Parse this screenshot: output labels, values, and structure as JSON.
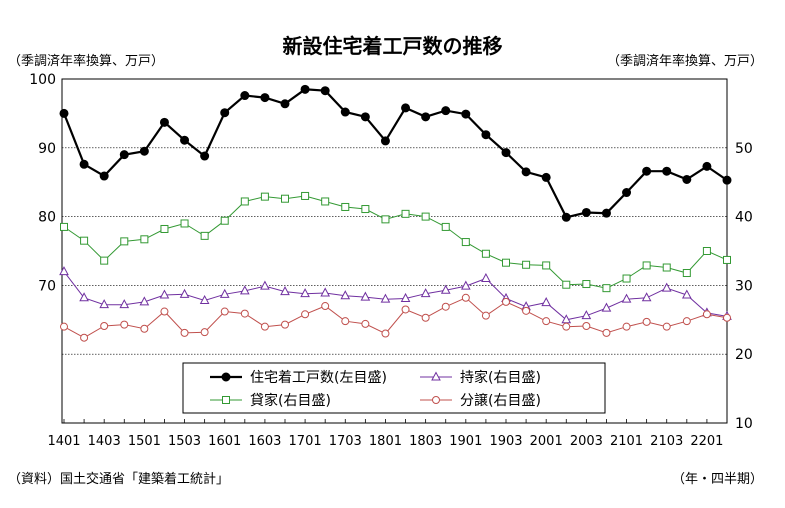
{
  "chart_data": {
    "type": "line",
    "title": "新設住宅着工戸数の推移",
    "ylabel_left": "（季調済年率換算、万戸）",
    "ylabel_right": "（季調済年率換算、万戸）",
    "xlabel": "（年・四半期）",
    "source": "（資料）国土交通省「建築着工統計」",
    "x_ticks": [
      "1401",
      "1403",
      "1501",
      "1503",
      "1601",
      "1603",
      "1701",
      "1703",
      "1801",
      "1803",
      "1901",
      "1903",
      "2001",
      "2003",
      "2101",
      "2103",
      "2201"
    ],
    "y_left": {
      "ticks": [
        70,
        80,
        90,
        100
      ],
      "ylim": [
        50,
        100
      ]
    },
    "y_right": {
      "ticks": [
        10,
        20,
        30,
        40,
        50
      ],
      "ylim": [
        10,
        60
      ]
    },
    "gridlines_at_left": [
      60,
      70,
      80,
      90
    ],
    "legend_position": "bottom-center",
    "series": [
      {
        "name": "住宅着工戸数(左目盛)",
        "axis": "left",
        "color": "#000000",
        "marker": "circle-filled",
        "values": [
          95.0,
          87.6,
          85.9,
          89.0,
          89.5,
          93.7,
          91.1,
          88.8,
          95.1,
          97.6,
          97.3,
          96.4,
          98.5,
          98.3,
          95.2,
          94.5,
          91.0,
          95.8,
          94.5,
          95.4,
          94.9,
          91.9,
          89.3,
          86.5,
          85.7,
          79.9,
          80.6,
          80.5,
          83.5,
          86.6,
          86.6,
          85.4,
          87.3,
          85.3
        ]
      },
      {
        "name": "持家(右目盛)",
        "axis": "right",
        "color": "#7030a0",
        "marker": "triangle-open",
        "values": [
          32.0,
          28.2,
          27.2,
          27.2,
          27.6,
          28.6,
          28.7,
          27.8,
          28.7,
          29.2,
          29.9,
          29.1,
          28.8,
          28.9,
          28.5,
          28.3,
          28.0,
          28.1,
          28.8,
          29.3,
          29.9,
          31.0,
          28.1,
          26.9,
          27.5,
          25.0,
          25.6,
          26.7,
          28.0,
          28.2,
          29.6,
          28.6,
          26.0,
          25.5
        ]
      },
      {
        "name": "貸家(右目盛)",
        "axis": "right",
        "color": "#339933",
        "marker": "square-open",
        "values": [
          38.5,
          36.5,
          33.6,
          36.4,
          36.7,
          38.2,
          39.0,
          37.2,
          39.4,
          42.2,
          42.9,
          42.6,
          43.0,
          42.2,
          41.4,
          41.1,
          39.6,
          40.4,
          40.0,
          38.5,
          36.3,
          34.6,
          33.3,
          33.0,
          32.9,
          30.1,
          30.2,
          29.6,
          31.0,
          32.9,
          32.6,
          31.8,
          35.0,
          33.7
        ]
      },
      {
        "name": "分譲(右目盛)",
        "axis": "right",
        "color": "#c0504d",
        "marker": "circle-open",
        "values": [
          24.0,
          22.4,
          24.1,
          24.3,
          23.7,
          26.2,
          23.1,
          23.2,
          26.2,
          25.9,
          24.0,
          24.3,
          25.8,
          27.0,
          24.8,
          24.4,
          23.0,
          26.5,
          25.3,
          26.9,
          28.2,
          25.6,
          27.6,
          26.3,
          24.8,
          24.0,
          24.1,
          23.1,
          24.0,
          24.7,
          24.0,
          24.8,
          25.8,
          25.3
        ]
      }
    ]
  }
}
